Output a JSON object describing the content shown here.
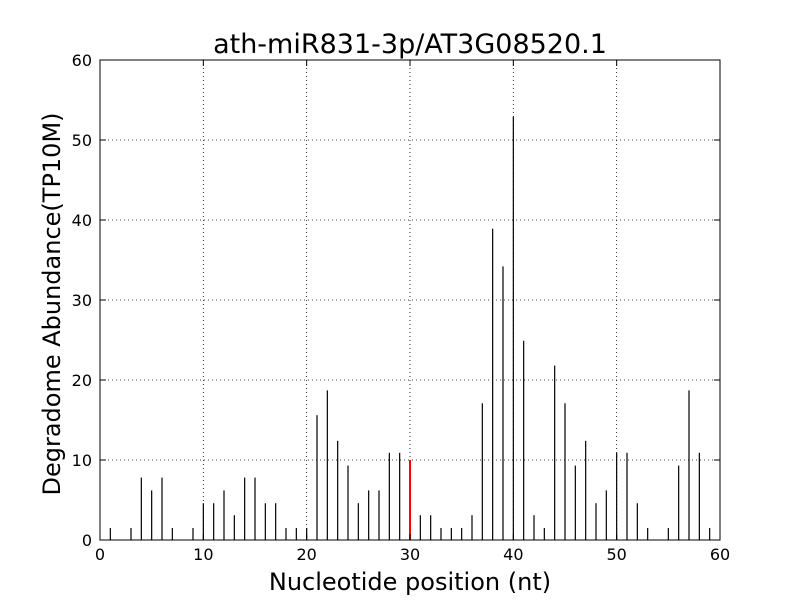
{
  "chart_data": {
    "type": "bar",
    "title": "ath-miR831-3p/AT3G08520.1",
    "xlabel": "Nucleotide position (nt)",
    "ylabel": "Degradome Abundance(TP10M)",
    "xlim": [
      0,
      60
    ],
    "ylim": [
      0,
      60
    ],
    "xticks": [
      0,
      10,
      20,
      30,
      40,
      50,
      60
    ],
    "yticks": [
      0,
      10,
      20,
      30,
      40,
      50,
      60
    ],
    "grid": true,
    "colors": {
      "default": "#000000",
      "highlight": "#ff0000"
    },
    "series": [
      {
        "x": [
          1,
          3,
          4,
          5,
          6,
          7,
          9,
          10,
          11,
          12,
          13,
          14,
          15,
          16,
          17,
          18,
          19,
          20,
          21,
          22,
          23,
          24,
          25,
          26,
          27,
          28,
          29,
          30,
          31,
          32,
          33,
          34,
          35,
          36,
          37,
          38,
          39,
          40,
          41,
          42,
          43,
          44,
          45,
          46,
          47,
          48,
          49,
          50,
          51,
          52,
          53,
          55,
          56,
          57,
          58,
          59
        ],
        "values": [
          1.5,
          1.5,
          7.8,
          6.2,
          7.8,
          1.5,
          1.5,
          4.6,
          4.6,
          6.2,
          3.1,
          7.8,
          7.8,
          4.6,
          4.6,
          1.5,
          1.5,
          1.5,
          15.6,
          18.7,
          12.4,
          9.3,
          4.6,
          6.2,
          6.2,
          10.9,
          10.9,
          10.0,
          3.1,
          3.1,
          1.5,
          1.5,
          1.5,
          3.1,
          17.1,
          38.9,
          34.2,
          52.9,
          24.9,
          3.1,
          1.5,
          21.8,
          17.1,
          9.3,
          12.4,
          4.6,
          6.2,
          10.9,
          10.9,
          4.6,
          1.5,
          1.5,
          9.3,
          18.7,
          10.9,
          1.5
        ],
        "highlight_x": 30
      }
    ]
  }
}
